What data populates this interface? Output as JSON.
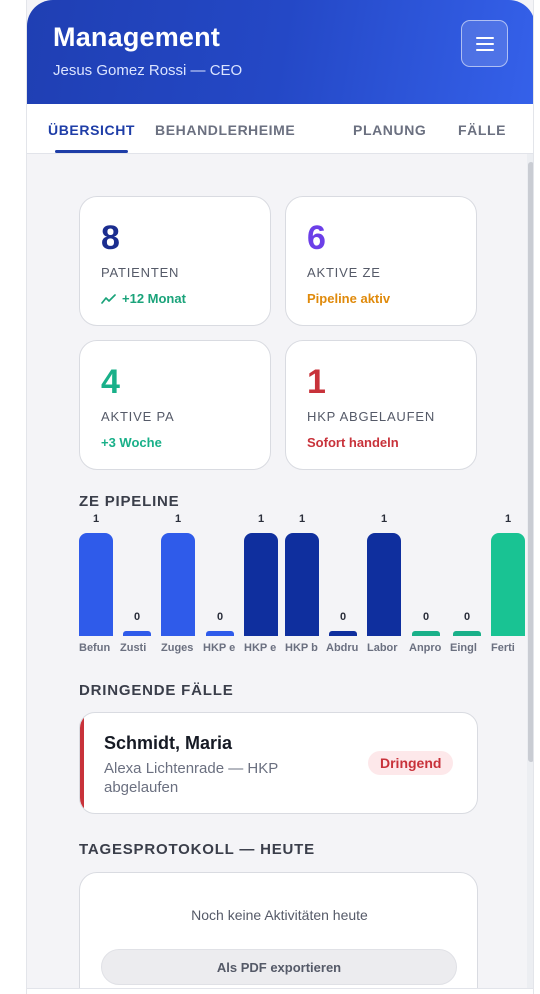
{
  "header": {
    "title": "Management",
    "subtitle": "Jesus Gomez Rossi — CEO",
    "menu_icon": "hamburger-menu-icon"
  },
  "tabs": [
    {
      "label": "ÜBERSICHT",
      "active": true
    },
    {
      "label": "BEHANDLER",
      "active": false
    },
    {
      "label": "HEIME",
      "active": false
    },
    {
      "label": "PLANUNG",
      "active": false
    },
    {
      "label": "FÄLLE",
      "active": false
    }
  ],
  "stats": [
    {
      "value": "8",
      "label": "PATIENTEN",
      "note": "+12 Monat",
      "note_icon": "trend-up-icon",
      "value_color": "#1b2d8f",
      "note_color": "#1aa37a"
    },
    {
      "value": "6",
      "label": "AKTIVE ZE",
      "note": "Pipeline aktiv",
      "value_color": "#6c3fe8",
      "note_color": "#e08a0b"
    },
    {
      "value": "4",
      "label": "AKTIVE PA",
      "note": "+3 Woche",
      "value_color": "#19b089",
      "note_color": "#19b089"
    },
    {
      "value": "1",
      "label": "HKP ABGELAUFEN",
      "note": "Sofort handeln",
      "value_color": "#c8323a",
      "note_color": "#c8323a"
    }
  ],
  "pipeline": {
    "title": "ZE PIPELINE"
  },
  "chart_data": {
    "type": "bar",
    "categories": [
      "Befun",
      "Zusti",
      "Zuges",
      "HKP e",
      "HKP e",
      "HKP b",
      "Abdru",
      "Labor",
      "Anpro",
      "Eingl",
      "Ferti"
    ],
    "values": [
      1,
      0,
      1,
      0,
      1,
      1,
      0,
      1,
      0,
      0,
      1
    ],
    "colors": [
      "#2f5bea",
      "#2f5bea",
      "#2f5bea",
      "#2f5bea",
      "#0f2f9e",
      "#0f2f9e",
      "#0f2f9e",
      "#0f2f9e",
      "#19b089",
      "#19b089",
      "#19c393"
    ],
    "title": "ZE PIPELINE",
    "xlabel": "",
    "ylabel": "",
    "ylim": [
      0,
      1
    ]
  },
  "urgent": {
    "title": "DRINGENDE FÄLLE",
    "cases": [
      {
        "name": "Schmidt, Maria",
        "detail": "Alexa Lichtenrade — HKP abgelaufen",
        "badge": "Dringend"
      }
    ]
  },
  "log": {
    "title": "TAGESPROTOKOLL — HEUTE",
    "empty_text": "Noch keine Aktivitäten heute",
    "export_label": "Als PDF exportieren"
  },
  "colors": {
    "header_start": "#1f3fb3",
    "header_end": "#3561ea",
    "accent": "#1e3da7",
    "urgent": "#c8323a"
  }
}
